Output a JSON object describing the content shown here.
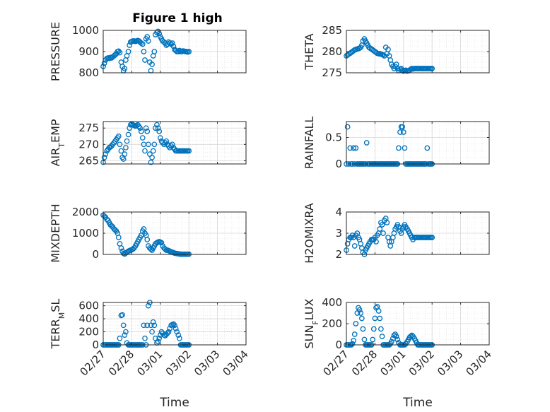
{
  "title": "Figure 1 high",
  "colors": {
    "marker": "#0072BD",
    "axis": "#262626",
    "grid": "#e0e0e0"
  },
  "chart_data": [
    {
      "type": "scatter",
      "ylabel": "PRESSURE",
      "ylim": [
        800,
        1000
      ],
      "yticks": [
        800,
        900,
        1000
      ],
      "xlim": [
        "02/27",
        "03/04"
      ],
      "xticks": [
        "02/27",
        "02/28",
        "03/01",
        "03/02",
        "03/03",
        "03/04"
      ],
      "xtick_labels_shown": false,
      "grid": true,
      "x": [
        0.0,
        0.04,
        0.08,
        0.13,
        0.17,
        0.21,
        0.25,
        0.29,
        0.33,
        0.38,
        0.42,
        0.46,
        0.5,
        0.54,
        0.58,
        0.63,
        0.67,
        0.71,
        0.75,
        0.79,
        0.83,
        0.88,
        0.92,
        0.96,
        1.0,
        1.04,
        1.08,
        1.13,
        1.17,
        1.21,
        1.25,
        1.29,
        1.33,
        1.38,
        1.42,
        1.46,
        1.5,
        1.54,
        1.58,
        1.63,
        1.67,
        1.71,
        1.75,
        1.79,
        1.83,
        1.88,
        1.92,
        1.96,
        2.0,
        2.04,
        2.08,
        2.13,
        2.17,
        2.21,
        2.25,
        2.29,
        2.33,
        2.38,
        2.42,
        2.46,
        2.5,
        2.54,
        2.58,
        2.63,
        2.67,
        2.71,
        2.75,
        2.79,
        2.83,
        2.88,
        2.92,
        2.96,
        3.0
      ],
      "y": [
        830,
        845,
        860,
        868,
        870,
        868,
        872,
        870,
        875,
        880,
        885,
        890,
        900,
        902,
        895,
        850,
        830,
        810,
        820,
        860,
        880,
        900,
        930,
        945,
        948,
        950,
        950,
        948,
        950,
        952,
        950,
        945,
        940,
        935,
        900,
        860,
        960,
        970,
        950,
        850,
        810,
        840,
        880,
        900,
        980,
        990,
        995,
        985,
        970,
        960,
        950,
        945,
        940,
        930,
        935,
        945,
        940,
        935,
        940,
        925,
        910,
        905,
        900,
        900,
        905,
        900,
        900,
        903,
        902,
        900,
        900,
        898,
        900
      ]
    },
    {
      "type": "scatter",
      "ylabel": "THETA",
      "ylim": [
        275,
        285
      ],
      "yticks": [
        275,
        280,
        285
      ],
      "xlim": [
        "02/27",
        "03/04"
      ],
      "xticks": [
        "02/27",
        "02/28",
        "03/01",
        "03/02",
        "03/03",
        "03/04"
      ],
      "xtick_labels_shown": false,
      "grid": true,
      "x": [
        0.0,
        0.04,
        0.08,
        0.13,
        0.17,
        0.21,
        0.25,
        0.29,
        0.33,
        0.38,
        0.42,
        0.46,
        0.5,
        0.54,
        0.58,
        0.63,
        0.67,
        0.71,
        0.75,
        0.79,
        0.83,
        0.88,
        0.92,
        0.96,
        1.0,
        1.04,
        1.08,
        1.13,
        1.17,
        1.21,
        1.25,
        1.29,
        1.33,
        1.38,
        1.42,
        1.46,
        1.5,
        1.54,
        1.58,
        1.63,
        1.67,
        1.71,
        1.75,
        1.79,
        1.83,
        1.88,
        1.92,
        1.96,
        2.0,
        2.04,
        2.08,
        2.13,
        2.17,
        2.21,
        2.25,
        2.29,
        2.33,
        2.38,
        2.42,
        2.46,
        2.5,
        2.54,
        2.58,
        2.63,
        2.67,
        2.71,
        2.75,
        2.79,
        2.83,
        2.88,
        2.92,
        2.96,
        3.0
      ],
      "y": [
        279.0,
        279.2,
        279.4,
        279.6,
        279.8,
        280.0,
        280.2,
        280.4,
        280.5,
        280.6,
        280.7,
        280.8,
        281.0,
        281.5,
        282.5,
        283.0,
        282.5,
        282.0,
        281.5,
        281.0,
        280.8,
        280.6,
        280.4,
        280.2,
        280.0,
        279.8,
        279.6,
        279.5,
        279.5,
        279.4,
        279.3,
        279.2,
        279.0,
        281.0,
        279.5,
        280.5,
        279.0,
        278.0,
        277.0,
        276.5,
        276.0,
        276.5,
        277.0,
        276.0,
        275.5,
        275.8,
        276.0,
        275.6,
        275.4,
        275.5,
        275.6,
        275.4,
        275.5,
        275.6,
        275.8,
        276.0,
        275.9,
        276.0,
        276.0,
        276.0,
        276.0,
        276.0,
        276.0,
        276.0,
        276.0,
        276.0,
        276.0,
        276.0,
        276.0,
        276.0,
        276.0,
        276.0,
        276.0
      ]
    },
    {
      "type": "scatter",
      "ylabel": "AIR_TEMP",
      "ylim": [
        264,
        277
      ],
      "yticks": [
        265,
        270,
        275
      ],
      "xlim": [
        "02/27",
        "03/04"
      ],
      "xticks": [
        "02/27",
        "02/28",
        "03/01",
        "03/02",
        "03/03",
        "03/04"
      ],
      "xtick_labels_shown": false,
      "grid": true,
      "x": [
        0.0,
        0.04,
        0.08,
        0.13,
        0.17,
        0.21,
        0.25,
        0.29,
        0.33,
        0.38,
        0.42,
        0.46,
        0.5,
        0.54,
        0.58,
        0.63,
        0.67,
        0.71,
        0.75,
        0.79,
        0.83,
        0.88,
        0.92,
        0.96,
        1.0,
        1.04,
        1.08,
        1.13,
        1.17,
        1.21,
        1.25,
        1.29,
        1.33,
        1.38,
        1.42,
        1.46,
        1.5,
        1.54,
        1.58,
        1.63,
        1.67,
        1.71,
        1.75,
        1.79,
        1.83,
        1.88,
        1.92,
        1.96,
        2.0,
        2.04,
        2.08,
        2.13,
        2.17,
        2.21,
        2.25,
        2.29,
        2.33,
        2.38,
        2.42,
        2.46,
        2.5,
        2.54,
        2.58,
        2.63,
        2.67,
        2.71,
        2.75,
        2.79,
        2.83,
        2.88,
        2.92,
        2.96,
        3.0
      ],
      "y": [
        264.5,
        266.0,
        267.0,
        268.0,
        268.5,
        269.0,
        269.2,
        269.5,
        270.0,
        270.5,
        271.0,
        271.5,
        272.0,
        272.5,
        270.0,
        268.0,
        266.0,
        265.5,
        267.0,
        269.0,
        271.0,
        273.0,
        275.0,
        276.0,
        276.2,
        276.0,
        275.8,
        275.6,
        275.8,
        276.0,
        275.5,
        275.0,
        274.0,
        272.0,
        270.0,
        268.0,
        275.0,
        274.0,
        270.0,
        267.0,
        264.5,
        266.0,
        268.0,
        270.0,
        275.0,
        276.0,
        275.0,
        274.0,
        272.0,
        271.0,
        270.5,
        270.0,
        270.5,
        271.0,
        270.0,
        269.5,
        269.0,
        269.5,
        270.0,
        269.0,
        268.5,
        268.0,
        268.0,
        268.0,
        268.0,
        268.0,
        268.0,
        268.0,
        268.0,
        268.0,
        268.0,
        268.0,
        268.0
      ]
    },
    {
      "type": "scatter",
      "ylabel": "RAINFALL",
      "ylim": [
        0,
        0.8
      ],
      "yticks": [
        0,
        0.5
      ],
      "xlim": [
        "02/27",
        "03/04"
      ],
      "xticks": [
        "02/27",
        "02/28",
        "03/01",
        "03/02",
        "03/03",
        "03/04"
      ],
      "xtick_labels_shown": false,
      "grid": true,
      "x": [
        0.0,
        0.04,
        0.08,
        0.13,
        0.17,
        0.21,
        0.25,
        0.29,
        0.33,
        0.38,
        0.42,
        0.46,
        0.5,
        0.54,
        0.58,
        0.63,
        0.67,
        0.71,
        0.75,
        0.79,
        0.83,
        0.88,
        0.92,
        0.96,
        1.0,
        1.04,
        1.08,
        1.13,
        1.17,
        1.21,
        1.25,
        1.29,
        1.33,
        1.38,
        1.42,
        1.46,
        1.5,
        1.54,
        1.58,
        1.63,
        1.67,
        1.71,
        1.75,
        1.79,
        1.83,
        1.88,
        1.92,
        1.96,
        2.0,
        2.04,
        2.08,
        2.13,
        2.17,
        2.21,
        2.25,
        2.29,
        2.33,
        2.38,
        2.42,
        2.46,
        2.5,
        2.54,
        2.58,
        2.63,
        2.67,
        2.71,
        2.75,
        2.79,
        2.83,
        2.88,
        2.92,
        2.96,
        3.0
      ],
      "y": [
        0,
        0.7,
        0,
        0.3,
        0,
        0,
        0.3,
        0,
        0.3,
        0,
        0,
        0,
        0,
        0,
        0,
        0,
        0,
        0.4,
        0,
        0,
        0,
        0,
        0,
        0,
        0,
        0,
        0,
        0,
        0,
        0,
        0,
        0,
        0,
        0,
        0,
        0,
        0,
        0,
        0,
        0,
        0,
        0,
        0,
        0,
        0.3,
        0.6,
        0.7,
        0.7,
        0.6,
        0.3,
        0,
        0,
        0,
        0,
        0,
        0,
        0,
        0,
        0,
        0,
        0,
        0,
        0,
        0,
        0,
        0,
        0,
        0,
        0.3,
        0,
        0,
        0,
        0
      ]
    },
    {
      "type": "scatter",
      "ylabel": "MIXDEPTH",
      "ylim": [
        0,
        2000
      ],
      "yticks": [
        0,
        1000,
        2000
      ],
      "xlim": [
        "02/27",
        "03/04"
      ],
      "xticks": [
        "02/27",
        "02/28",
        "03/01",
        "03/02",
        "03/03",
        "03/04"
      ],
      "xtick_labels_shown": false,
      "grid": true,
      "x": [
        0.0,
        0.04,
        0.08,
        0.13,
        0.17,
        0.21,
        0.25,
        0.29,
        0.33,
        0.38,
        0.42,
        0.46,
        0.5,
        0.54,
        0.58,
        0.63,
        0.67,
        0.71,
        0.75,
        0.79,
        0.83,
        0.88,
        0.92,
        0.96,
        1.0,
        1.04,
        1.08,
        1.13,
        1.17,
        1.21,
        1.25,
        1.29,
        1.33,
        1.38,
        1.42,
        1.46,
        1.5,
        1.54,
        1.58,
        1.63,
        1.67,
        1.71,
        1.75,
        1.79,
        1.83,
        1.88,
        1.92,
        1.96,
        2.0,
        2.04,
        2.08,
        2.13,
        2.17,
        2.21,
        2.25,
        2.29,
        2.33,
        2.38,
        2.42,
        2.46,
        2.5,
        2.54,
        2.58,
        2.63,
        2.67,
        2.71,
        2.75,
        2.79,
        2.83,
        2.88,
        2.92,
        2.96,
        3.0
      ],
      "y": [
        1850,
        1800,
        1750,
        1650,
        1600,
        1500,
        1400,
        1350,
        1300,
        1200,
        1150,
        1100,
        1000,
        800,
        500,
        300,
        150,
        50,
        20,
        60,
        100,
        150,
        180,
        200,
        220,
        250,
        300,
        400,
        500,
        600,
        700,
        800,
        900,
        1100,
        1200,
        1000,
        900,
        700,
        400,
        300,
        250,
        200,
        300,
        400,
        500,
        550,
        580,
        600,
        580,
        550,
        400,
        300,
        250,
        200,
        200,
        180,
        150,
        120,
        100,
        80,
        60,
        50,
        40,
        30,
        20,
        10,
        10,
        10,
        10,
        10,
        10,
        10,
        10
      ]
    },
    {
      "type": "scatter",
      "ylabel": "H2OMIXRA",
      "ylim": [
        2,
        4
      ],
      "yticks": [
        2,
        3,
        4
      ],
      "xlim": [
        "02/27",
        "03/04"
      ],
      "xticks": [
        "02/27",
        "02/28",
        "03/01",
        "03/02",
        "03/03",
        "03/04"
      ],
      "xtick_labels_shown": false,
      "grid": true,
      "x": [
        0.0,
        0.04,
        0.08,
        0.13,
        0.17,
        0.21,
        0.25,
        0.29,
        0.33,
        0.38,
        0.42,
        0.46,
        0.5,
        0.54,
        0.58,
        0.63,
        0.67,
        0.71,
        0.75,
        0.79,
        0.83,
        0.88,
        0.92,
        0.96,
        1.0,
        1.04,
        1.08,
        1.13,
        1.17,
        1.21,
        1.25,
        1.29,
        1.33,
        1.38,
        1.42,
        1.46,
        1.5,
        1.54,
        1.58,
        1.63,
        1.67,
        1.71,
        1.75,
        1.79,
        1.83,
        1.88,
        1.92,
        1.96,
        2.0,
        2.04,
        2.08,
        2.13,
        2.17,
        2.21,
        2.25,
        2.29,
        2.33,
        2.38,
        2.42,
        2.46,
        2.5,
        2.54,
        2.58,
        2.63,
        2.67,
        2.71,
        2.75,
        2.79,
        2.83,
        2.88,
        2.92,
        2.96,
        3.0
      ],
      "y": [
        2.2,
        2.5,
        2.7,
        2.8,
        2.8,
        2.9,
        2.8,
        2.4,
        2.9,
        3.0,
        2.8,
        2.7,
        2.5,
        2.3,
        2.1,
        2.0,
        2.2,
        2.3,
        2.4,
        2.5,
        2.6,
        2.7,
        2.7,
        2.7,
        2.8,
        2.6,
        2.9,
        3.0,
        3.2,
        3.5,
        3.4,
        3.0,
        3.6,
        3.7,
        3.5,
        2.8,
        2.6,
        2.4,
        2.6,
        2.8,
        3.0,
        3.2,
        3.3,
        3.4,
        3.3,
        3.1,
        3.0,
        3.2,
        3.3,
        3.4,
        3.3,
        3.2,
        3.1,
        3.0,
        2.9,
        2.8,
        2.7,
        2.8,
        2.8,
        2.8,
        2.8,
        2.8,
        2.8,
        2.8,
        2.8,
        2.8,
        2.8,
        2.8,
        2.8,
        2.8,
        2.8,
        2.8,
        2.8
      ]
    },
    {
      "type": "scatter",
      "ylabel": "TERR_MSL",
      "ylim": [
        0,
        650
      ],
      "yticks": [
        0,
        200,
        400,
        600
      ],
      "xlim": [
        "02/27",
        "03/04"
      ],
      "xticks": [
        "02/27",
        "02/28",
        "03/01",
        "03/02",
        "03/03",
        "03/04"
      ],
      "xtick_labels": [
        "02/27",
        "02/28",
        "03/01",
        "03/02",
        "03/03",
        "03/04"
      ],
      "xlabel": "Time",
      "grid": true,
      "x": [
        0.0,
        0.04,
        0.08,
        0.13,
        0.17,
        0.21,
        0.25,
        0.29,
        0.33,
        0.38,
        0.42,
        0.46,
        0.5,
        0.54,
        0.58,
        0.63,
        0.67,
        0.71,
        0.75,
        0.79,
        0.83,
        0.88,
        0.92,
        0.96,
        1.0,
        1.04,
        1.08,
        1.13,
        1.17,
        1.21,
        1.25,
        1.29,
        1.33,
        1.38,
        1.42,
        1.46,
        1.5,
        1.54,
        1.58,
        1.63,
        1.67,
        1.71,
        1.75,
        1.79,
        1.83,
        1.88,
        1.92,
        1.96,
        2.0,
        2.04,
        2.08,
        2.13,
        2.17,
        2.21,
        2.25,
        2.29,
        2.33,
        2.38,
        2.42,
        2.46,
        2.5,
        2.54,
        2.58,
        2.63,
        2.67,
        2.71,
        2.75,
        2.79,
        2.83,
        2.88,
        2.92,
        2.96,
        3.0
      ],
      "y": [
        0,
        0,
        0,
        0,
        0,
        0,
        0,
        0,
        0,
        0,
        0,
        0,
        0,
        0,
        100,
        450,
        460,
        300,
        150,
        200,
        30,
        0,
        0,
        0,
        0,
        0,
        0,
        0,
        0,
        0,
        0,
        0,
        0,
        0,
        300,
        100,
        0,
        300,
        600,
        650,
        300,
        200,
        350,
        300,
        100,
        30,
        50,
        100,
        150,
        200,
        180,
        150,
        140,
        160,
        180,
        200,
        250,
        300,
        310,
        320,
        300,
        250,
        200,
        150,
        100,
        0,
        0,
        0,
        0,
        0,
        0,
        0,
        0
      ]
    },
    {
      "type": "scatter",
      "ylabel": "SUN_FLUX",
      "ylim": [
        0,
        400
      ],
      "yticks": [
        0,
        200,
        400
      ],
      "xlim": [
        "02/27",
        "03/04"
      ],
      "xticks": [
        "02/27",
        "02/28",
        "03/01",
        "03/02",
        "03/03",
        "03/04"
      ],
      "xtick_labels": [
        "02/27",
        "02/28",
        "03/01",
        "03/02",
        "03/03",
        "03/04"
      ],
      "xlabel": "Time",
      "grid": true,
      "x": [
        0.0,
        0.04,
        0.08,
        0.13,
        0.17,
        0.21,
        0.25,
        0.29,
        0.33,
        0.38,
        0.42,
        0.46,
        0.5,
        0.54,
        0.58,
        0.63,
        0.67,
        0.71,
        0.75,
        0.79,
        0.83,
        0.88,
        0.92,
        0.96,
        1.0,
        1.04,
        1.08,
        1.13,
        1.17,
        1.21,
        1.25,
        1.29,
        1.33,
        1.38,
        1.42,
        1.46,
        1.5,
        1.54,
        1.58,
        1.63,
        1.67,
        1.71,
        1.75,
        1.79,
        1.83,
        1.88,
        1.92,
        1.96,
        2.0,
        2.04,
        2.08,
        2.13,
        2.17,
        2.21,
        2.25,
        2.29,
        2.33,
        2.38,
        2.42,
        2.46,
        2.5,
        2.54,
        2.58,
        2.63,
        2.67,
        2.71,
        2.75,
        2.79,
        2.83,
        2.88,
        2.92,
        2.96,
        3.0
      ],
      "y": [
        0,
        0,
        0,
        0,
        0,
        10,
        40,
        100,
        200,
        300,
        350,
        330,
        300,
        250,
        150,
        50,
        0,
        0,
        0,
        0,
        0,
        0,
        50,
        150,
        250,
        350,
        360,
        320,
        250,
        150,
        80,
        0,
        0,
        0,
        0,
        0,
        0,
        10,
        30,
        60,
        90,
        100,
        80,
        50,
        20,
        0,
        0,
        0,
        0,
        0,
        10,
        30,
        50,
        70,
        80,
        90,
        80,
        60,
        40,
        20,
        0,
        0,
        0,
        0,
        0,
        0,
        0,
        0,
        0,
        0,
        0,
        0,
        0
      ]
    }
  ]
}
